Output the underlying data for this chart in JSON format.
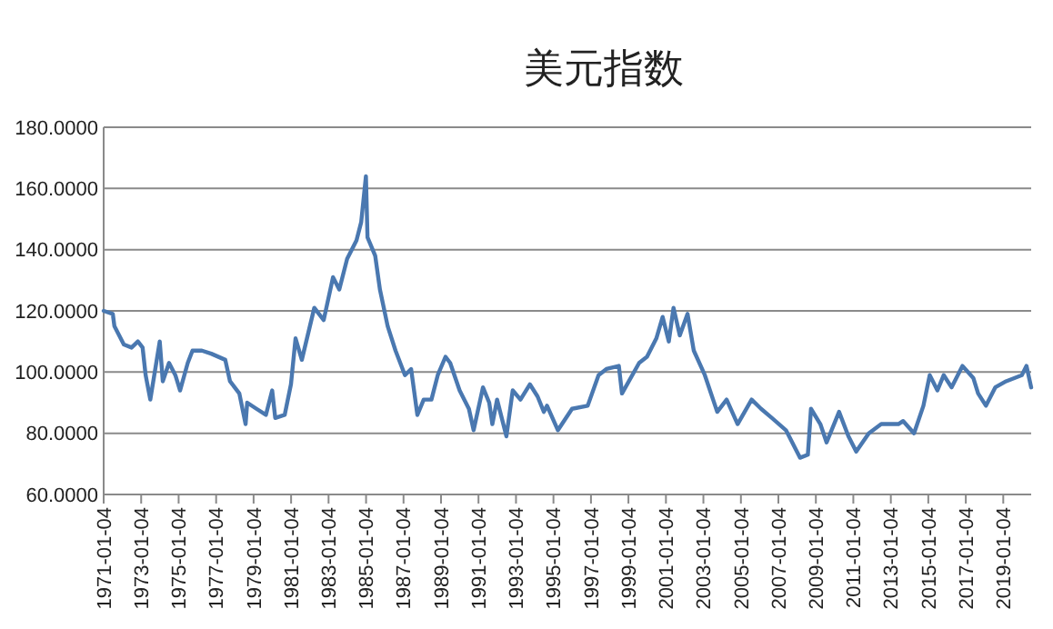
{
  "chart_data": {
    "type": "line",
    "title": "美元指数",
    "x": [
      "1971-01-04",
      "1971-07",
      "1971-08",
      "1972-02",
      "1972-07",
      "1972-11",
      "1973-02",
      "1973-04",
      "1973-07",
      "1974-01",
      "1974-03",
      "1974-07",
      "1974-11",
      "1975-02",
      "1975-07",
      "1975-10",
      "1976-04",
      "1976-10",
      "1977-07",
      "1977-10",
      "1978-04",
      "1978-08",
      "1978-09",
      "1979-03",
      "1979-09",
      "1980-01",
      "1980-03",
      "1980-09",
      "1981-01",
      "1981-04",
      "1981-08",
      "1982-04",
      "1982-10",
      "1983-04",
      "1983-08",
      "1984-01",
      "1984-07",
      "1984-10",
      "1985-01",
      "1985-02",
      "1985-07",
      "1985-10",
      "1986-03",
      "1986-08",
      "1987-02",
      "1987-06",
      "1987-10",
      "1988-02",
      "1988-07",
      "1988-11",
      "1989-04",
      "1989-07",
      "1990-01",
      "1990-07",
      "1990-10",
      "1991-04",
      "1991-08",
      "1991-10",
      "1992-01",
      "1992-07",
      "1992-11",
      "1993-04",
      "1993-10",
      "1994-03",
      "1994-07",
      "1994-09",
      "1995-04",
      "1996-01",
      "1996-11",
      "1997-06",
      "1997-11",
      "1998-07",
      "1998-09",
      "1999-08",
      "2000-01",
      "2000-07",
      "2000-11",
      "2001-03",
      "2001-06",
      "2001-10",
      "2002-03",
      "2002-07",
      "2003-02",
      "2003-10",
      "2004-04",
      "2004-11",
      "2005-08",
      "2006-02",
      "2006-09",
      "2007-06",
      "2008-03",
      "2008-08",
      "2008-10",
      "2009-04",
      "2009-08",
      "2010-04",
      "2010-10",
      "2011-03",
      "2011-11",
      "2012-07",
      "2013-06",
      "2013-09",
      "2014-04",
      "2014-10",
      "2015-02",
      "2015-07",
      "2015-11",
      "2016-04",
      "2016-11",
      "2017-06",
      "2017-09",
      "2018-02",
      "2018-08",
      "2019-03",
      "2020-01",
      "2020-04",
      "2020-07"
    ],
    "series": [
      {
        "color": "#4a78b0",
        "values": [
          120,
          119,
          115,
          109,
          108,
          110,
          108,
          99,
          91,
          110,
          97,
          103,
          99,
          94,
          103,
          107,
          107,
          106,
          104,
          97,
          93,
          83,
          90,
          88,
          86,
          94,
          85,
          86,
          96,
          111,
          104,
          121,
          117,
          131,
          127,
          137,
          143,
          149,
          164,
          144,
          138,
          127,
          115,
          107,
          99,
          101,
          86,
          91,
          91,
          99,
          105,
          103,
          94,
          88,
          81,
          95,
          90,
          83,
          91,
          79,
          94,
          91,
          96,
          92,
          87,
          89,
          81,
          88,
          89,
          99,
          101,
          102,
          93,
          103,
          105,
          111,
          118,
          110,
          121,
          112,
          119,
          107,
          99,
          87,
          91,
          83,
          91,
          88,
          85,
          81,
          72,
          73,
          88,
          83,
          77,
          87,
          79,
          74,
          80,
          83,
          83,
          84,
          80,
          89,
          99,
          94,
          99,
          95,
          102,
          98,
          93,
          89,
          95,
          97,
          99,
          102,
          95
        ]
      }
    ],
    "xlim": [
      "1971-01-04",
      "2020-07"
    ],
    "xticks": [
      "1971-01-04",
      "1973-01-04",
      "1975-01-04",
      "1977-01-04",
      "1979-01-04",
      "1981-01-04",
      "1983-01-04",
      "1985-01-04",
      "1987-01-04",
      "1989-01-04",
      "1991-01-04",
      "1993-01-04",
      "1995-01-04",
      "1997-01-04",
      "1999-01-04",
      "2001-01-04",
      "2003-01-04",
      "2005-01-04",
      "2007-01-04",
      "2009-01-04",
      "2011-01-04",
      "2013-01-04",
      "2015-01-04",
      "2017-01-04",
      "2019-01-04"
    ],
    "ylim": [
      60,
      180
    ],
    "yticks": [
      {
        "value": 60,
        "label": "60.0000"
      },
      {
        "value": 80,
        "label": "80.0000"
      },
      {
        "value": 100,
        "label": "100.0000"
      },
      {
        "value": 120,
        "label": "120.0000"
      },
      {
        "value": 140,
        "label": "140.0000"
      },
      {
        "value": 160,
        "label": "160.0000"
      },
      {
        "value": 180,
        "label": "180.0000"
      }
    ],
    "grid": "y",
    "marker": "none",
    "line_style": "solid"
  }
}
